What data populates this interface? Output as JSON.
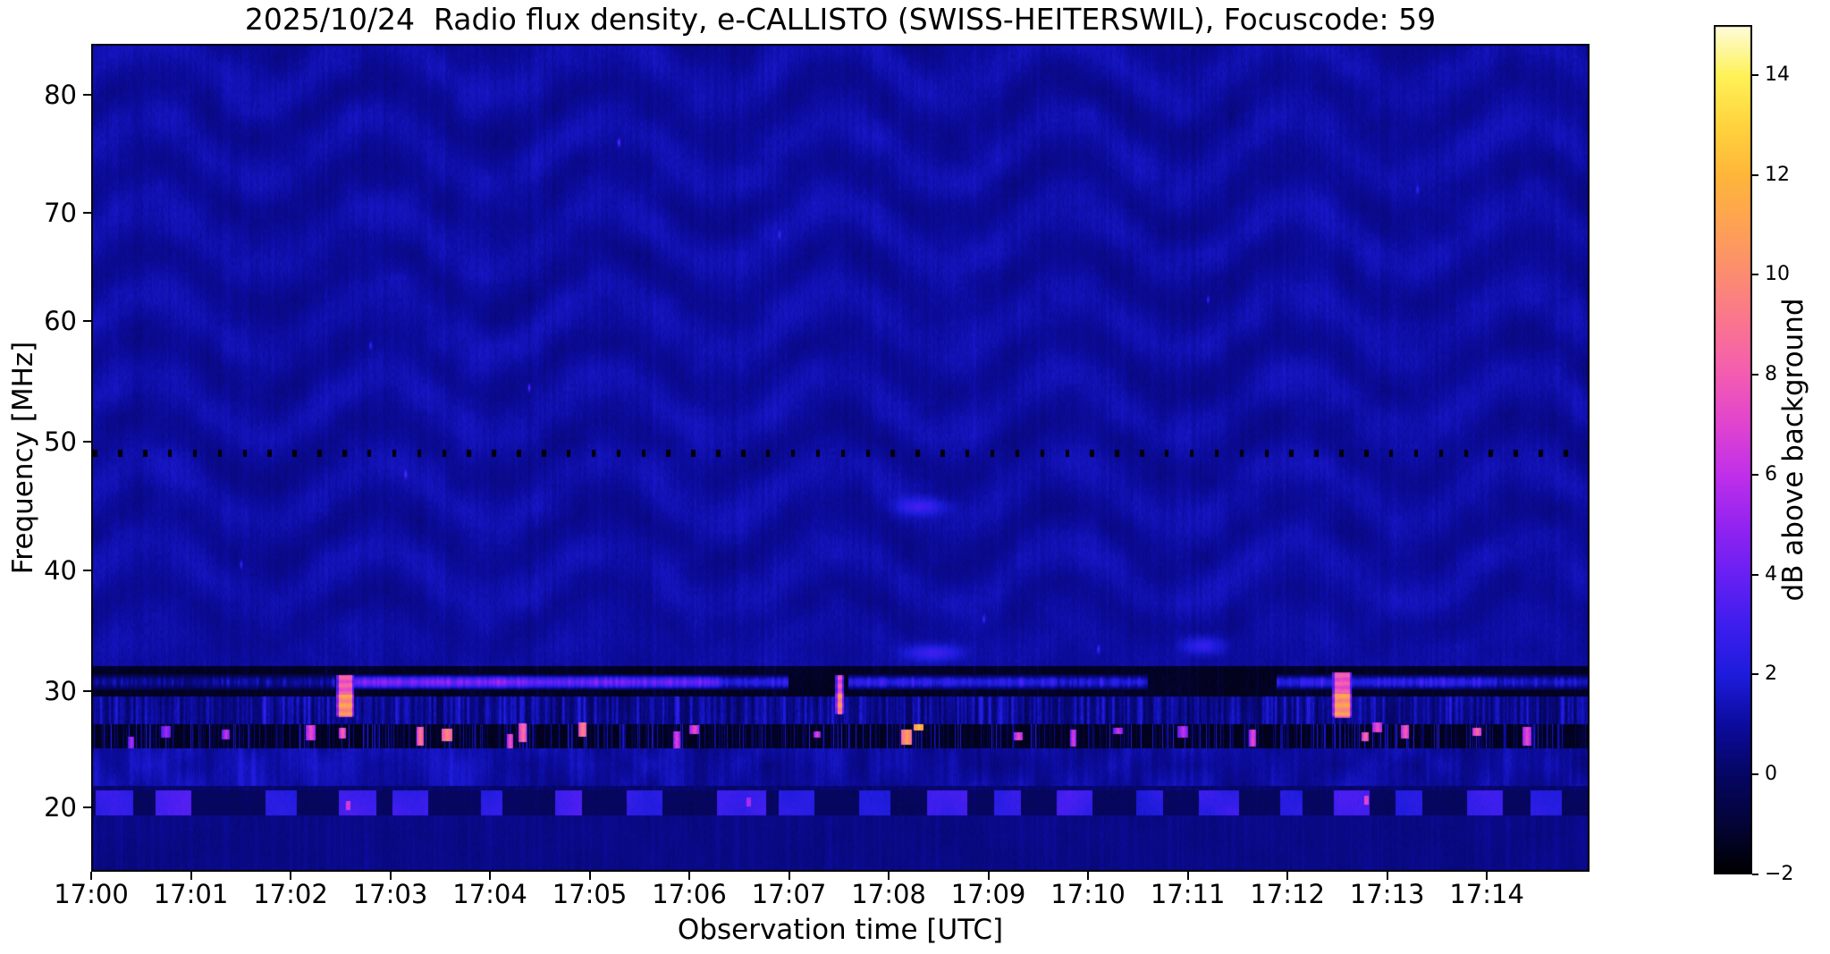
{
  "title": "2025/10/24  Radio flux density, e-CALLISTO (SWISS-HEITERSWIL), Focuscode: 59",
  "station": "SWISS-HEITERSWIL",
  "date": "2025/10/24",
  "focuscode": "59",
  "colors": {
    "figure_background": "#ffffff",
    "text": "#000000"
  },
  "chart_data": {
    "type": "heatmap",
    "title": "2025/10/24  Radio flux density, e-CALLISTO (SWISS-HEITERSWIL), Focuscode: 59",
    "xlabel": "Observation time [UTC]",
    "ylabel": "Frequency [MHz]",
    "colorbar_label": "dB above background",
    "x_tick_labels": [
      "17:00",
      "17:01",
      "17:02",
      "17:03",
      "17:04",
      "17:05",
      "17:06",
      "17:07",
      "17:08",
      "17:09",
      "17:10",
      "17:11",
      "17:12",
      "17:13",
      "17:14"
    ],
    "x_tick_interval_min": 1,
    "time_start_utc": "17:00",
    "time_span_min": 15.03,
    "freq_range_mhz": [
      14.65,
      84.35
    ],
    "y_tick_values": [
      80,
      70,
      60,
      50,
      40,
      30,
      20
    ],
    "freq_axis_anchors": {
      "f": [
        84.35,
        80,
        70,
        60,
        50,
        40,
        30,
        20,
        14.65
      ],
      "py": [
        0,
        57,
        189,
        310,
        445,
        589,
        724,
        854,
        926
      ]
    },
    "color_range_db": [
      -2,
      15
    ],
    "colorbar_tick_values": [
      14,
      12,
      10,
      8,
      6,
      4,
      2,
      0,
      -2
    ],
    "colormap_name": "gnuplot2-like (black-blue-violet-magenta-orange-yellow-white)",
    "colormap_stops": [
      [
        -2,
        0,
        0,
        0
      ],
      [
        -1,
        4,
        4,
        55
      ],
      [
        0,
        6,
        6,
        100
      ],
      [
        1,
        12,
        12,
        158
      ],
      [
        2,
        30,
        28,
        220
      ],
      [
        3,
        62,
        30,
        238
      ],
      [
        4,
        105,
        32,
        244
      ],
      [
        5,
        148,
        36,
        240
      ],
      [
        6,
        192,
        48,
        234
      ],
      [
        7,
        224,
        68,
        208
      ],
      [
        8,
        244,
        92,
        178
      ],
      [
        9,
        250,
        116,
        146
      ],
      [
        10,
        252,
        140,
        114
      ],
      [
        11,
        254,
        162,
        84
      ],
      [
        12,
        255,
        182,
        58
      ],
      [
        13,
        255,
        212,
        62
      ],
      [
        14,
        255,
        242,
        88
      ],
      [
        15,
        254,
        252,
        222
      ]
    ],
    "background_noise_db": 1.05,
    "features": {
      "calibration_line": {
        "freq_mhz": 49.4,
        "dash_period_s": 15,
        "dash_width_s": 2.4,
        "db": -1.85
      },
      "dark_band": {
        "f_top_mhz": 32.1,
        "f_bottom_mhz": 29.6,
        "db": -1.35
      },
      "streak_31mhz": {
        "f_top_mhz": 31.45,
        "f_bottom_mhz": 30.1,
        "segments_t_min": [
          [
            0.0,
            2.45,
            1.3
          ],
          [
            2.56,
            4.4,
            4.8
          ],
          [
            4.4,
            6.3,
            4.3
          ],
          [
            6.3,
            7.0,
            2.8
          ],
          [
            7.6,
            9.7,
            2.9
          ],
          [
            9.7,
            10.6,
            2.4
          ],
          [
            11.9,
            14.1,
            2.9
          ],
          [
            14.1,
            15.03,
            2.2
          ]
        ]
      },
      "mid_band": {
        "f_top_mhz": 29.6,
        "f_bottom_mhz": 27.2,
        "base_db": -0.2
      },
      "speckle_band": {
        "f_top_mhz": 27.2,
        "f_bottom_mhz": 25.1,
        "base_db": -1.45,
        "bright_dots_t_db": [
          [
            0.4,
            6.0
          ],
          [
            0.75,
            5.5
          ],
          [
            1.35,
            6.5
          ],
          [
            2.2,
            7.5
          ],
          [
            2.52,
            8.5
          ],
          [
            3.3,
            9.5
          ],
          [
            3.57,
            10.0
          ],
          [
            4.2,
            8.0
          ],
          [
            4.33,
            9.0
          ],
          [
            4.93,
            9.8
          ],
          [
            5.87,
            7.0
          ],
          [
            6.05,
            7.5
          ],
          [
            7.28,
            7.2
          ],
          [
            8.18,
            11.0
          ],
          [
            8.3,
            12.5
          ],
          [
            9.3,
            7.5
          ],
          [
            9.85,
            6.8
          ],
          [
            10.3,
            6.5
          ],
          [
            10.95,
            6.2
          ],
          [
            11.65,
            7.5
          ],
          [
            12.78,
            8.8
          ],
          [
            12.9,
            7.6
          ],
          [
            13.18,
            8.2
          ],
          [
            13.9,
            8.6
          ],
          [
            14.4,
            7.4
          ]
        ]
      },
      "texture_band": {
        "f_top_mhz": 25.1,
        "f_bottom_mhz": 21.9,
        "base_db": 0.85
      },
      "blob_row": {
        "f_top_mhz": 21.5,
        "f_bottom_mhz": 19.4,
        "base_db": -0.15,
        "blobs_t_w_db": [
          [
            0.05,
            42,
            2.6
          ],
          [
            0.65,
            40,
            3.2
          ],
          [
            1.75,
            35,
            2.4
          ],
          [
            2.49,
            42,
            3.0
          ],
          [
            3.03,
            40,
            2.8
          ],
          [
            3.91,
            24,
            2.3
          ],
          [
            4.66,
            30,
            3.3
          ],
          [
            5.38,
            40,
            2.5
          ],
          [
            6.28,
            55,
            2.9
          ],
          [
            6.9,
            40,
            2.4
          ],
          [
            7.71,
            35,
            2.2
          ],
          [
            8.39,
            45,
            3.1
          ],
          [
            9.06,
            30,
            2.5
          ],
          [
            9.69,
            40,
            2.9
          ],
          [
            10.49,
            30,
            2.3
          ],
          [
            11.12,
            45,
            2.7
          ],
          [
            11.93,
            25,
            2.2
          ],
          [
            12.47,
            40,
            3.0
          ],
          [
            13.09,
            30,
            2.4
          ],
          [
            13.81,
            40,
            2.8
          ],
          [
            14.44,
            35,
            2.5
          ]
        ],
        "pink_dots_t_db": [
          [
            2.58,
            6.5
          ],
          [
            6.6,
            5.5
          ],
          [
            12.79,
            7.0
          ]
        ]
      },
      "bottom_band": {
        "f_top_mhz": 19.4,
        "base_db": 0.52
      },
      "bursts": [
        {
          "time_utc": "17:02:28",
          "t_start_min": 2.466,
          "t_end_min": 2.628,
          "f_top_mhz": 31.33,
          "f_mid_mhz": 29.69,
          "f_bottom_mhz": 27.8,
          "pink_db": 7.8,
          "orange_db": 10.3
        },
        {
          "time_utc": "17:07:28",
          "t_start_min": 7.47,
          "t_end_min": 7.545,
          "f_top_mhz": 31.3,
          "f_mid_mhz": 29.7,
          "f_bottom_mhz": 28.0,
          "pink_db": 7.2,
          "orange_db": 9.8
        },
        {
          "time_utc": "17:12:27",
          "t_start_min": 12.455,
          "t_end_min": 12.64,
          "f_top_mhz": 31.5,
          "f_mid_mhz": 29.7,
          "f_bottom_mhz": 27.75,
          "pink_db": 7.6,
          "orange_db": 10.4
        }
      ],
      "sparks_t_f_db": [
        [
          5.29,
          76.0,
          3.2
        ],
        [
          4.39,
          54.5,
          3.4
        ],
        [
          3.15,
          47.5,
          2.6
        ],
        [
          6.9,
          68.0,
          2.0
        ],
        [
          1.5,
          40.5,
          2.2
        ],
        [
          11.2,
          62.0,
          2.2
        ],
        [
          13.3,
          72.0,
          2.0
        ],
        [
          10.1,
          33.5,
          2.6
        ],
        [
          8.95,
          36.0,
          2.2
        ],
        [
          2.8,
          58.0,
          2.0
        ]
      ],
      "smudges_t_f_db_w_h": [
        [
          8.32,
          45.0,
          1.6,
          26,
          9
        ],
        [
          11.15,
          33.8,
          1.8,
          22,
          10
        ],
        [
          8.45,
          33.2,
          1.8,
          30,
          9
        ]
      ]
    },
    "legend_position": "right-colorbar",
    "grid": false
  }
}
